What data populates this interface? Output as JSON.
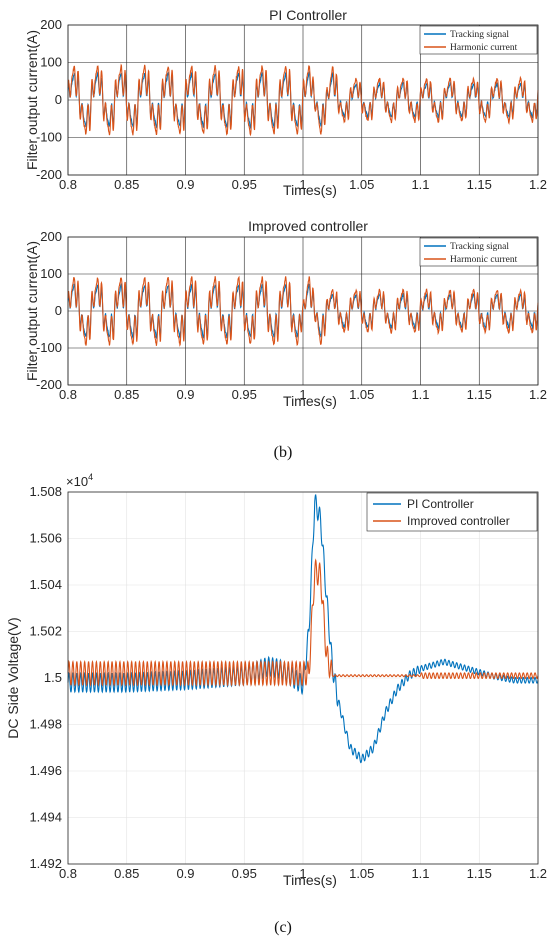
{
  "captions": [
    "(b)",
    "(c)"
  ],
  "chart_data": [
    {
      "type": "line",
      "title": "PI Controller",
      "xlabel": "Times(s)",
      "ylabel": "Filter output current(A)",
      "xlim": [
        0.8,
        1.2
      ],
      "ylim": [
        -200,
        200
      ],
      "xticks": [
        "0.8",
        "0.85",
        "0.9",
        "0.95",
        "1",
        "1.05",
        "1.1",
        "1.15",
        "1.2"
      ],
      "yticks": [
        "-200",
        "-100",
        "0",
        "100",
        "200"
      ],
      "grid": true,
      "legend": "top-right",
      "series": [
        {
          "name": "Tracking signal",
          "color": "#0072BD",
          "waveform": {
            "pre_amplitude": 95,
            "post_amplitude": 60,
            "disturbance_time": 1.02,
            "end_time": 1.03
          }
        },
        {
          "name": "Harmonic current",
          "color": "#D95319",
          "waveform": {
            "pre_amplitude": 110,
            "post_amplitude": 70,
            "disturbance_time": 1.02,
            "end_time": 1.03
          }
        }
      ]
    },
    {
      "type": "line",
      "title": "Improved controller",
      "xlabel": "Times(s)",
      "ylabel": "Filter output current(A)",
      "xlim": [
        0.8,
        1.2
      ],
      "ylim": [
        -200,
        200
      ],
      "xticks": [
        "0.8",
        "0.85",
        "0.9",
        "0.95",
        "1",
        "1.05",
        "1.1",
        "1.15",
        "1.2"
      ],
      "yticks": [
        "-200",
        "-100",
        "0",
        "100",
        "200"
      ],
      "grid": true,
      "legend": "top-right",
      "series": [
        {
          "name": "Tracking signal",
          "color": "#0072BD",
          "waveform": {
            "pre_amplitude": 95,
            "post_amplitude": 60,
            "disturbance_time": 1.01,
            "end_time": 1.02
          }
        },
        {
          "name": "Harmonic current",
          "color": "#D95319",
          "waveform": {
            "pre_amplitude": 110,
            "post_amplitude": 70,
            "disturbance_time": 1.01,
            "end_time": 1.02
          }
        }
      ]
    },
    {
      "type": "line",
      "title": "",
      "xlabel": "Times(s)",
      "ylabel": "DC Side Voltage(V)",
      "xlim": [
        0.8,
        1.2
      ],
      "ylim": [
        1.492,
        1.508
      ],
      "y_multiplier": "×10",
      "y_multiplier_exp": "4",
      "xticks": [
        "0.8",
        "0.85",
        "0.9",
        "0.95",
        "1",
        "1.05",
        "1.1",
        "1.15",
        "1.2"
      ],
      "yticks": [
        "1.492",
        "1.494",
        "1.496",
        "1.498",
        "1.5",
        "1.502",
        "1.504",
        "1.506",
        "1.508"
      ],
      "grid": true,
      "legend": "top-right",
      "series": [
        {
          "name": "PI Controller",
          "color": "#0072BD",
          "points": [
            [
              0.8,
              1.4998
            ],
            [
              0.85,
              1.4998
            ],
            [
              0.9,
              1.4999
            ],
            [
              0.95,
              1.5001
            ],
            [
              0.97,
              1.5005
            ],
            [
              0.98,
              1.5004
            ],
            [
              1.0,
              1.4997
            ],
            [
              1.005,
              1.502
            ],
            [
              1.01,
              1.5076
            ],
            [
              1.015,
              1.5068
            ],
            [
              1.02,
              1.5035
            ],
            [
              1.025,
              1.5005
            ],
            [
              1.03,
              1.499
            ],
            [
              1.04,
              1.497
            ],
            [
              1.05,
              1.4965
            ],
            [
              1.06,
              1.497
            ],
            [
              1.07,
              1.4985
            ],
            [
              1.08,
              1.4995
            ],
            [
              1.09,
              1.5001
            ],
            [
              1.1,
              1.5004
            ],
            [
              1.12,
              1.5007
            ],
            [
              1.14,
              1.5004
            ],
            [
              1.16,
              1.5001
            ],
            [
              1.18,
              1.4999
            ],
            [
              1.2,
              1.4999
            ]
          ],
          "ripple": 0.0004
        },
        {
          "name": "Improved controller",
          "color": "#D95319",
          "points": [
            [
              0.8,
              1.5002
            ],
            [
              0.95,
              1.5002
            ],
            [
              1.0,
              1.5002
            ],
            [
              1.005,
              1.5002
            ],
            [
              1.01,
              1.5046
            ],
            [
              1.015,
              1.5044
            ],
            [
              1.02,
              1.501
            ],
            [
              1.025,
              1.5001
            ],
            [
              1.03,
              1.5001
            ],
            [
              1.1,
              1.5001
            ],
            [
              1.2,
              1.5001
            ]
          ],
          "ripple": 0.0005
        }
      ]
    }
  ]
}
